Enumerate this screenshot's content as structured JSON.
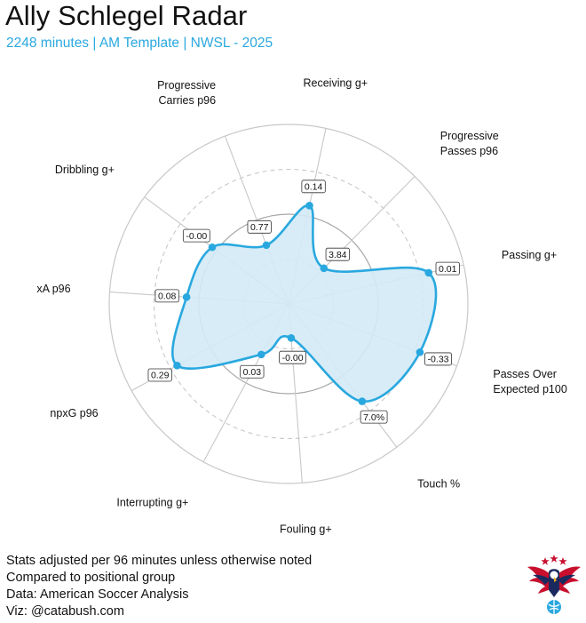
{
  "header": {
    "title": "Ally Schlegel Radar",
    "subtitle": "2248 minutes | AM Template | NWSL - 2025"
  },
  "footer": {
    "lines": [
      "Stats adjusted per 96 minutes unless otherwise noted",
      "Compared to positional group",
      "Data: American Soccer Analysis",
      "Viz: @catabush.com"
    ]
  },
  "colors": {
    "accent": "#29a8df",
    "fill": "#d3eaf6",
    "grid": "#c8c8c8",
    "logo_red": "#c8102e",
    "logo_navy": "#1b2a5e"
  },
  "chart_data": {
    "type": "radar",
    "title": "Ally Schlegel Radar",
    "scale": "percentile",
    "rlim": [
      0,
      100
    ],
    "rings": [
      25,
      50,
      75,
      100
    ],
    "axes": [
      {
        "label": [
          "Receiving g+"
        ],
        "value_label": "0.14",
        "percentile": 56
      },
      {
        "label": [
          "Progressive",
          "Passes p96"
        ],
        "value_label": "3.84",
        "percentile": 28
      },
      {
        "label": [
          "Passing g+"
        ],
        "value_label": "0.01",
        "percentile": 80
      },
      {
        "label": [
          "Passes Over",
          "Expected p100"
        ],
        "value_label": "-0.33",
        "percentile": 78
      },
      {
        "label": [
          "Touch %"
        ],
        "value_label": "7.0%",
        "percentile": 68
      },
      {
        "label": [
          "Fouling g+"
        ],
        "value_label": "-0.00",
        "percentile": 19
      },
      {
        "label": [
          "Interrupting g+"
        ],
        "value_label": "0.03",
        "percentile": 32
      },
      {
        "label": [
          "npxG p96"
        ],
        "value_label": "0.29",
        "percentile": 71
      },
      {
        "label": [
          "xA p96"
        ],
        "value_label": "0.08",
        "percentile": 57
      },
      {
        "label": [
          "Dribbling g+"
        ],
        "value_label": "-0.00",
        "percentile": 53
      },
      {
        "label": [
          "Progressive",
          "Carries p96"
        ],
        "value_label": "0.77",
        "percentile": 35
      }
    ]
  }
}
